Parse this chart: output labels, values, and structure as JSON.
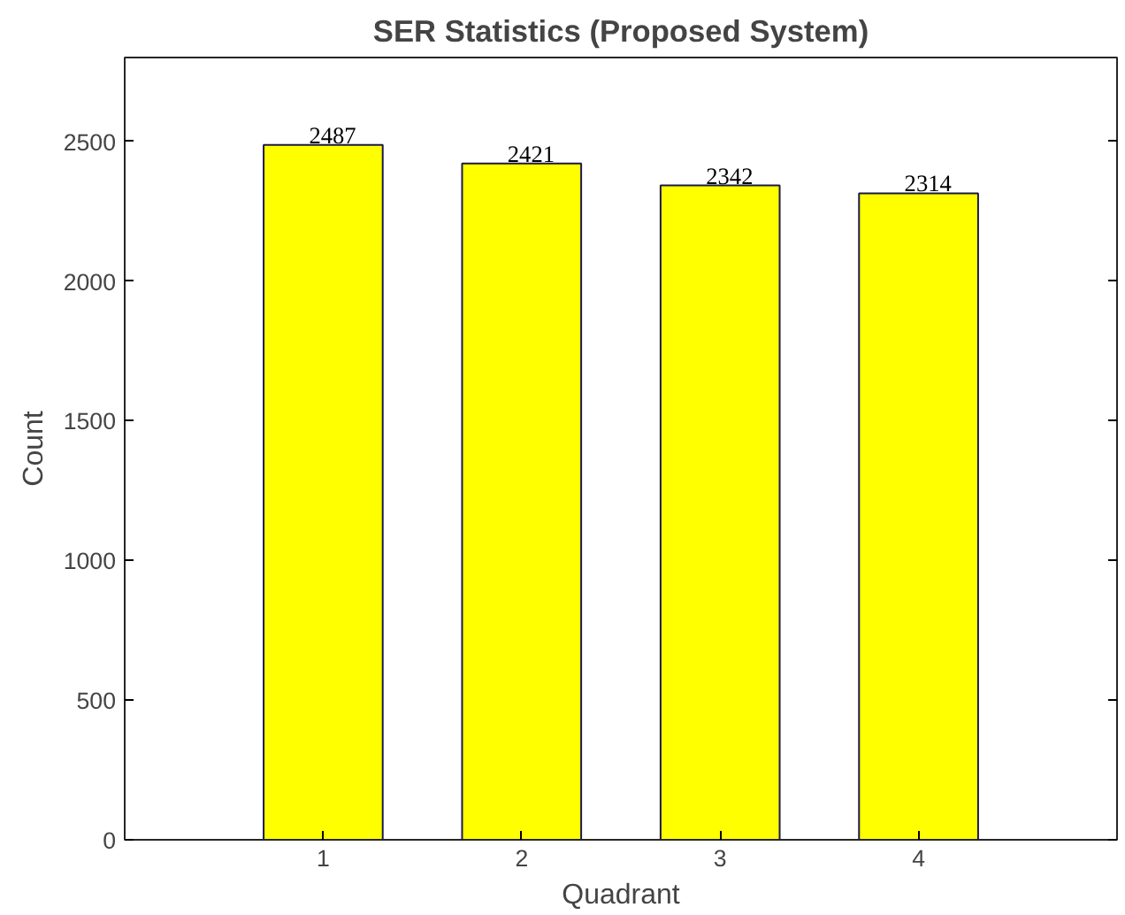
{
  "chart_data": {
    "type": "bar",
    "title": "SER Statistics (Proposed System)",
    "xlabel": "Quadrant",
    "ylabel": "Count",
    "categories": [
      "1",
      "2",
      "3",
      "4"
    ],
    "values": [
      2487,
      2421,
      2342,
      2314
    ],
    "color": "#ffff00",
    "ylim": [
      0,
      2800
    ],
    "yticks": [
      0,
      500,
      1000,
      1500,
      2000,
      2500
    ],
    "data_labels": true,
    "grid": false
  }
}
